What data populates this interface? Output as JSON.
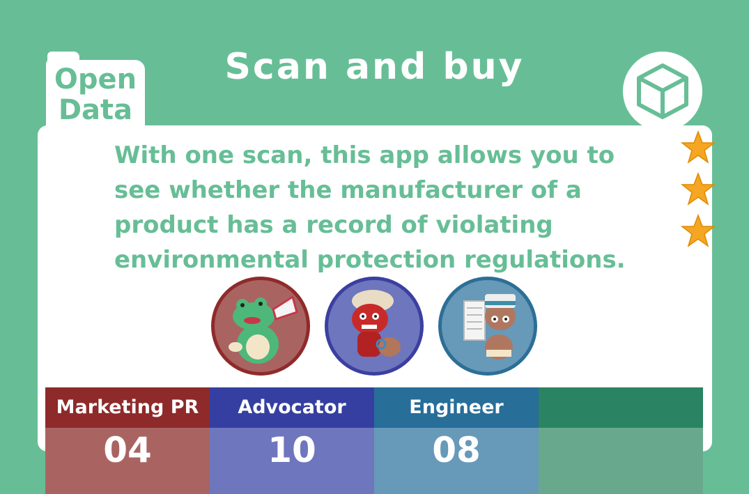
{
  "tab": {
    "line1": "Open",
    "line2": "Data"
  },
  "title": "Scan and buy",
  "description": "With one scan, this app allows you to see whether the manufacturer of a product has a record of violating environmental protection regulations.",
  "rating": {
    "stars": 3,
    "icon": "star-icon"
  },
  "icons": {
    "badge": "cube-icon"
  },
  "characters": [
    {
      "name": "frog-megaphone-avatar",
      "color": "#8f2b2b"
    },
    {
      "name": "red-creature-avatar",
      "color": "#3b3fa0"
    },
    {
      "name": "paper-carrier-avatar",
      "color": "#2c6f96"
    }
  ],
  "stats": [
    {
      "label": "Marketing PR",
      "value": "04",
      "head_color": "#8e2a2a",
      "value_color": "#a96461"
    },
    {
      "label": "Advocator",
      "value": "10",
      "head_color": "#353fa1",
      "value_color": "#6e76bd"
    },
    {
      "label": "Engineer",
      "value": "08",
      "head_color": "#276e99",
      "value_color": "#6799b8"
    },
    {
      "label": "",
      "value": "",
      "head_color": "#2a8463",
      "value_color": "#68a98d"
    }
  ]
}
